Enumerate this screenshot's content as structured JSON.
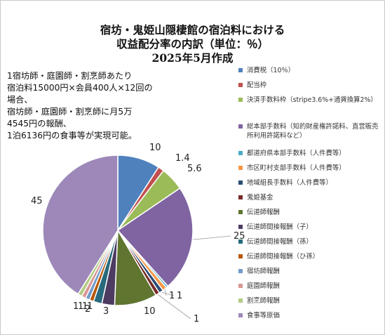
{
  "title_lines": [
    "宿坊・鬼姫山隠棲館の宿泊料における",
    "収益配分率の内訳（単位：％）",
    "2025年5月作成"
  ],
  "note_lines": [
    "1宿坊師・庭園師・割烹師あたり",
    "宿泊料15000円×会員400人×12回の",
    "場合、",
    "宿坊師・庭園師・割烹師に月5万",
    "4545円の報酬、",
    "1泊6136円の食事等が実現可能。"
  ],
  "chart_data": {
    "type": "pie",
    "title": "宿坊・鬼姫山隠棲館の宿泊料における収益配分率の内訳（単位：％）",
    "start_angle_deg": 0,
    "direction": "clockwise",
    "legend_position": "right",
    "slices": [
      {
        "label": "消費税（10％）",
        "value": 10,
        "data_label": "10",
        "color": "#4f81bd"
      },
      {
        "label": "配当枠",
        "value": 1.4,
        "data_label": "1.4",
        "color": "#c0504d"
      },
      {
        "label": "決済手数料枠（stripe3.6%+通貨換算2%）",
        "value": 5.6,
        "data_label": "5.6",
        "color": "#9bbb59"
      },
      {
        "label": "総本部手数料（知的財産権許諾料、直営販売所利用許諾料など）",
        "value": 25,
        "data_label": "25",
        "color": "#8064a2"
      },
      {
        "label": "都道府県本部手数料（人件費等）",
        "value": 0.5,
        "data_label": "",
        "color": "#4bacc6"
      },
      {
        "label": "市区町村支部手数料（人件費等）",
        "value": 1,
        "data_label": "1",
        "color": "#f79646"
      },
      {
        "label": "地域組長手数料（人件費等）",
        "value": 1,
        "data_label": "1",
        "color": "#2c4d75"
      },
      {
        "label": "鬼姫基金",
        "value": 1,
        "data_label": "1",
        "color": "#772c2a"
      },
      {
        "label": "伝道師報酬",
        "value": 10,
        "data_label": "10",
        "color": "#5f7530"
      },
      {
        "label": "伝道師間接報酬（子）",
        "value": 3,
        "data_label": "3",
        "color": "#4d3b62"
      },
      {
        "label": "伝道師間接報酬（孫）",
        "value": 2,
        "data_label": "2",
        "color": "#276a7c"
      },
      {
        "label": "伝道師間接報酬（ひ孫）",
        "value": 1,
        "data_label": "1",
        "color": "#b65708"
      },
      {
        "label": "宿坊師報酬",
        "value": 1,
        "data_label": "1",
        "color": "#729aca"
      },
      {
        "label": "庭園師報酬",
        "value": 1,
        "data_label": "1",
        "color": "#d99694"
      },
      {
        "label": "割烹師報酬",
        "value": 1,
        "data_label": "1",
        "color": "#b3cb82"
      },
      {
        "label": "食事等原価",
        "value": 45,
        "data_label": "45",
        "color": "#9d88b9"
      }
    ]
  }
}
